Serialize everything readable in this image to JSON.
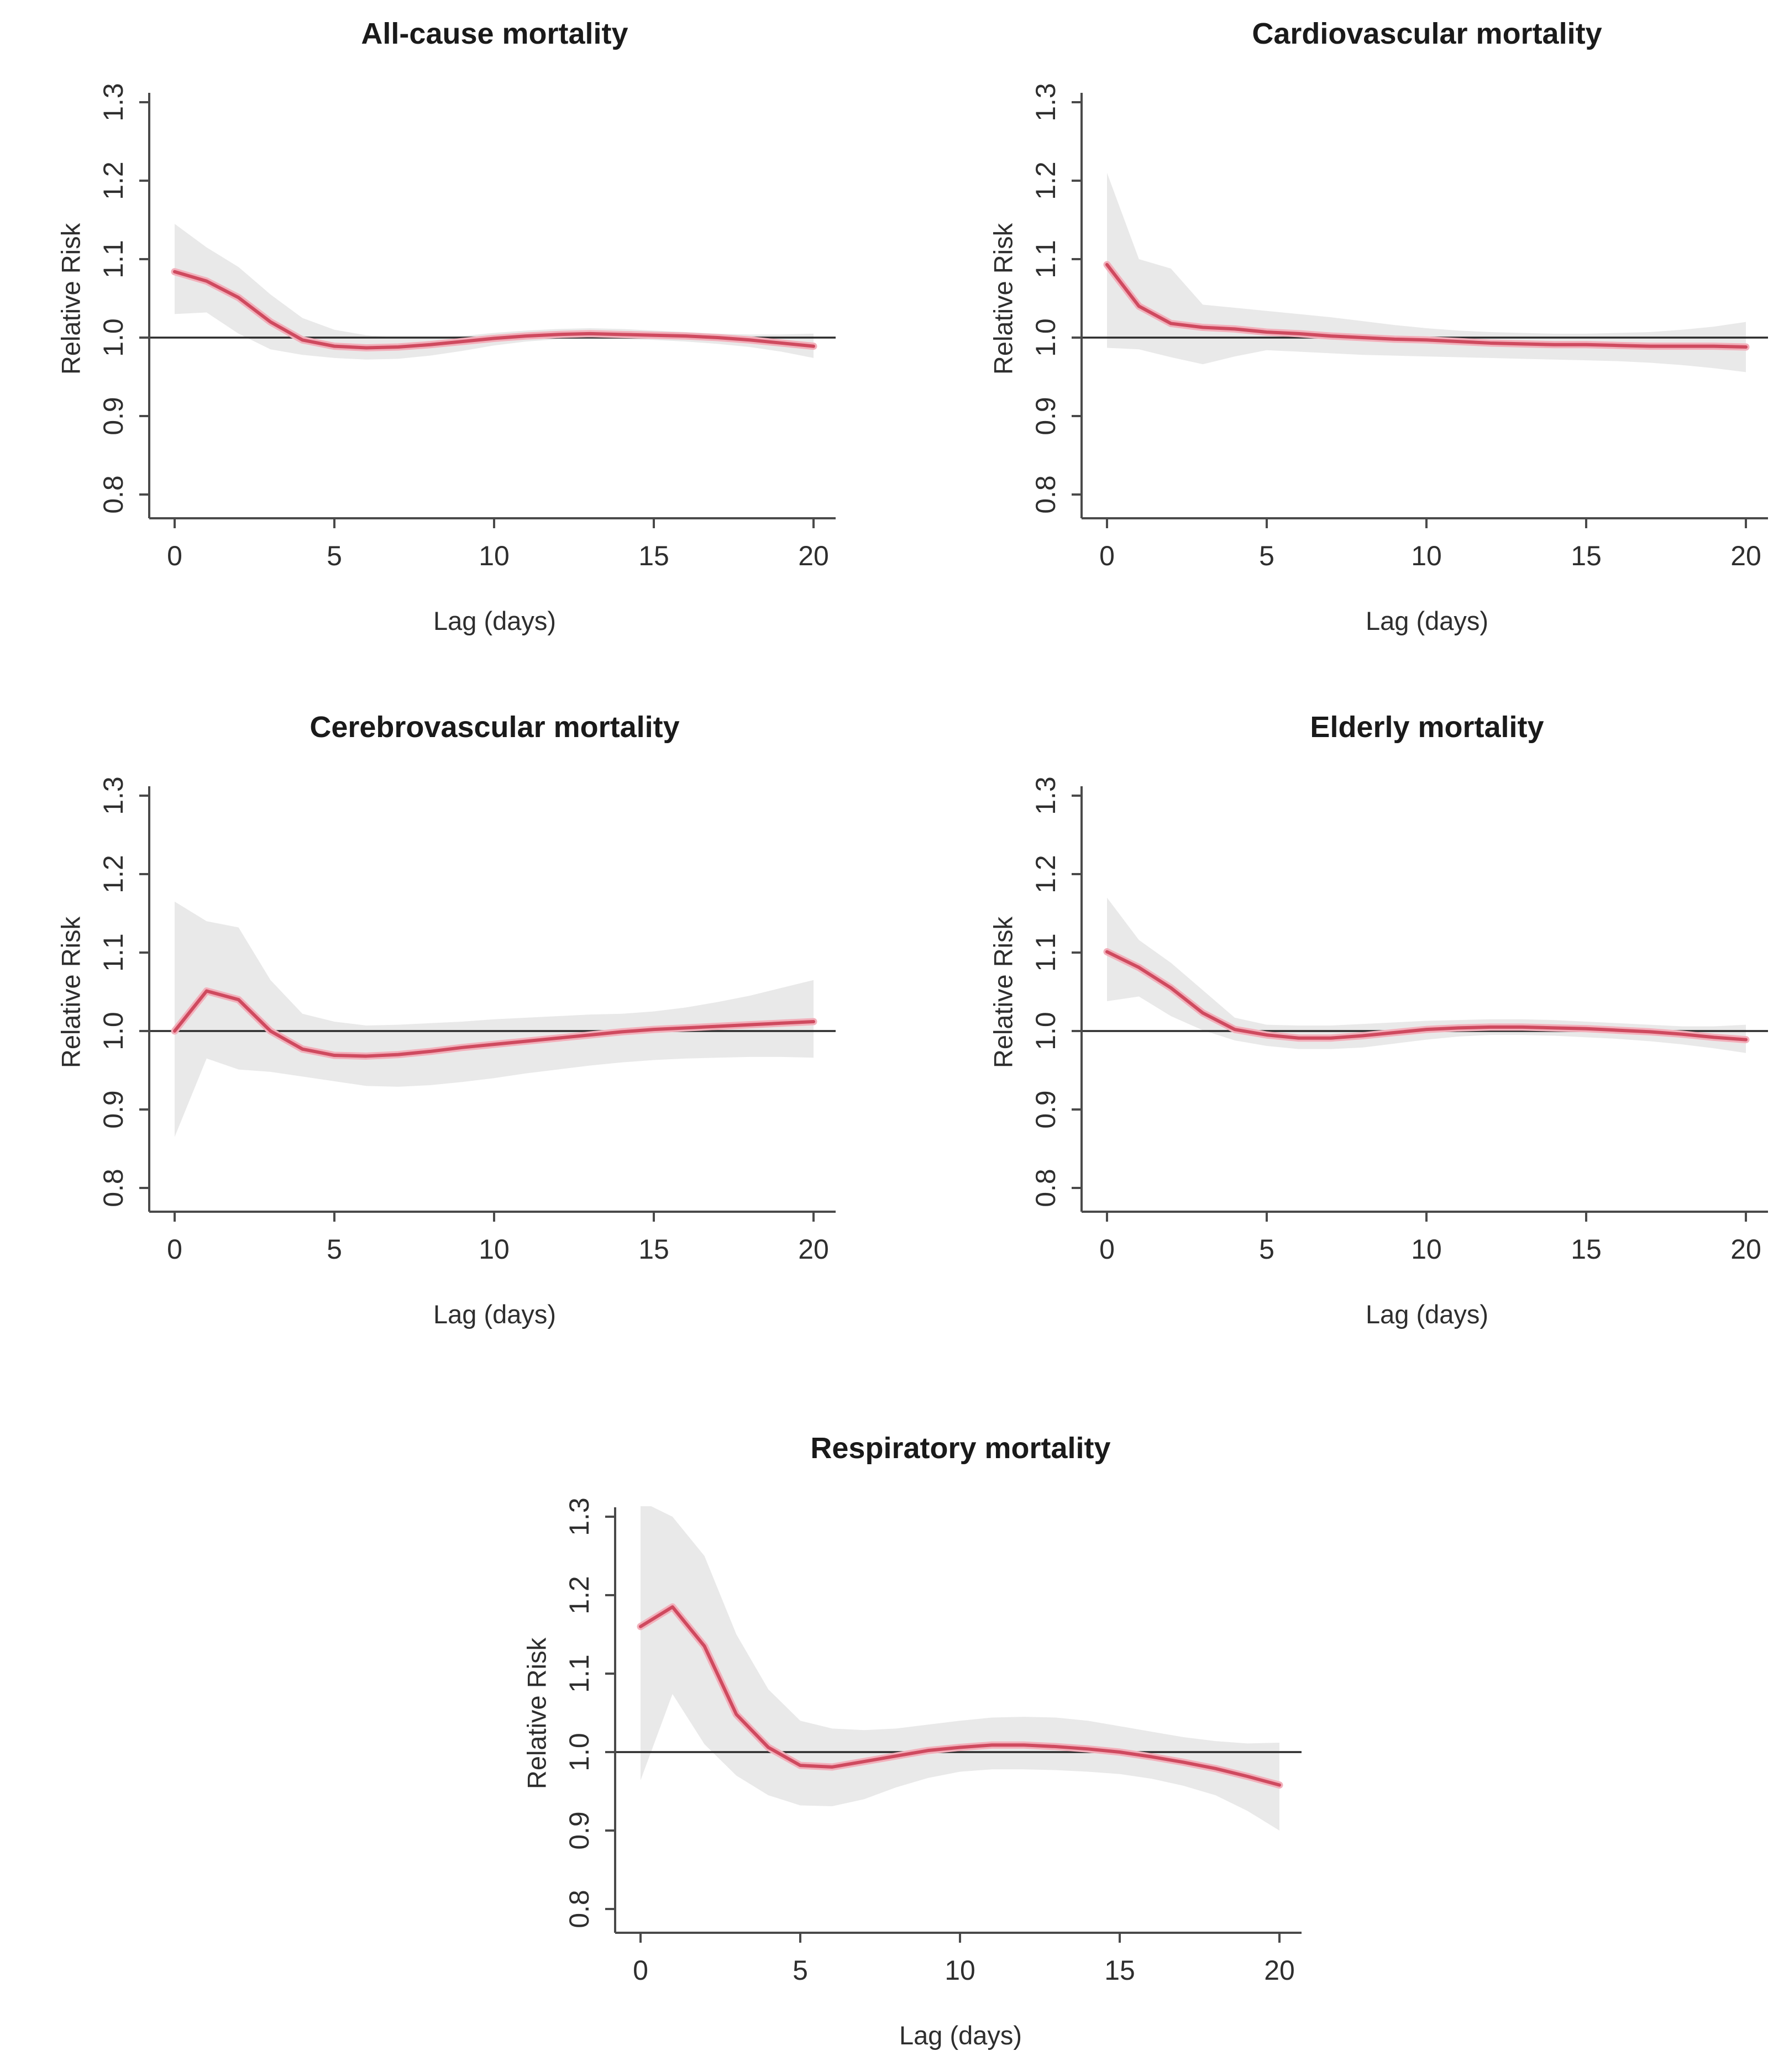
{
  "style": {
    "line_color": "#cf4a5f",
    "line_halo_color": "#f2b0bb",
    "band_color": "#e9e9e9",
    "reference_line_color": "#2b2b2b",
    "axis_color": "#4a4a4a",
    "text_color": "#2e2e2e",
    "background": "#ffffff"
  },
  "chart_data": [
    {
      "type": "line",
      "title": "All-cause mortality",
      "xlabel": "Lag (days)",
      "ylabel": "Relative Risk",
      "x": [
        0,
        1,
        2,
        3,
        4,
        5,
        6,
        7,
        8,
        9,
        10,
        11,
        12,
        13,
        14,
        15,
        16,
        17,
        18,
        19,
        20
      ],
      "xticks": [
        "0",
        "5",
        "10",
        "15",
        "20"
      ],
      "xtick_values": [
        0,
        5,
        10,
        15,
        20
      ],
      "yticks": [
        "0.8",
        "0.9",
        "1.0",
        "1.1",
        "1.2",
        "1.3"
      ],
      "ytick_values": [
        0.8,
        0.9,
        1.0,
        1.1,
        1.2,
        1.3
      ],
      "ylim": [
        0.785,
        1.325
      ],
      "reference_line": 1.0,
      "grid": false,
      "legend": "none",
      "series": [
        {
          "name": "Relative Risk",
          "values": [
            1.084,
            1.072,
            1.051,
            1.02,
            0.997,
            0.989,
            0.987,
            0.988,
            0.991,
            0.995,
            0.999,
            1.002,
            1.004,
            1.005,
            1.004,
            1.003,
            1.002,
            1.0,
            0.997,
            0.993,
            0.989
          ]
        },
        {
          "name": "CI upper",
          "values": [
            1.145,
            1.115,
            1.09,
            1.055,
            1.025,
            1.01,
            1.003,
            1.0,
            1.0,
            1.002,
            1.006,
            1.009,
            1.011,
            1.012,
            1.011,
            1.009,
            1.007,
            1.005,
            1.004,
            1.004,
            1.005
          ]
        },
        {
          "name": "CI lower",
          "values": [
            1.03,
            1.032,
            1.005,
            0.985,
            0.978,
            0.974,
            0.972,
            0.973,
            0.977,
            0.983,
            0.99,
            0.995,
            0.998,
            0.999,
            0.998,
            0.997,
            0.995,
            0.992,
            0.988,
            0.982,
            0.974
          ]
        }
      ]
    },
    {
      "type": "line",
      "title": "Cardiovascular mortality",
      "xlabel": "Lag (days)",
      "ylabel": "Relative Risk",
      "x": [
        0,
        1,
        2,
        3,
        4,
        5,
        6,
        7,
        8,
        9,
        10,
        11,
        12,
        13,
        14,
        15,
        16,
        17,
        18,
        19,
        20
      ],
      "xticks": [
        "0",
        "5",
        "10",
        "15",
        "20"
      ],
      "xtick_values": [
        0,
        5,
        10,
        15,
        20
      ],
      "yticks": [
        "0.8",
        "0.9",
        "1.0",
        "1.1",
        "1.2",
        "1.3"
      ],
      "ytick_values": [
        0.8,
        0.9,
        1.0,
        1.1,
        1.2,
        1.3
      ],
      "ylim": [
        0.785,
        1.325
      ],
      "reference_line": 1.0,
      "grid": false,
      "legend": "none",
      "series": [
        {
          "name": "Relative Risk",
          "values": [
            1.093,
            1.04,
            1.018,
            1.013,
            1.011,
            1.007,
            1.005,
            1.002,
            1.0,
            0.998,
            0.997,
            0.995,
            0.993,
            0.992,
            0.991,
            0.991,
            0.99,
            0.989,
            0.989,
            0.989,
            0.988
          ]
        },
        {
          "name": "CI upper",
          "values": [
            1.21,
            1.1,
            1.088,
            1.042,
            1.038,
            1.034,
            1.03,
            1.026,
            1.021,
            1.016,
            1.012,
            1.009,
            1.007,
            1.006,
            1.005,
            1.005,
            1.006,
            1.007,
            1.01,
            1.014,
            1.02
          ]
        },
        {
          "name": "CI lower",
          "values": [
            0.987,
            0.985,
            0.975,
            0.966,
            0.976,
            0.984,
            0.982,
            0.98,
            0.978,
            0.977,
            0.976,
            0.975,
            0.974,
            0.973,
            0.972,
            0.971,
            0.97,
            0.968,
            0.965,
            0.961,
            0.956
          ]
        }
      ]
    },
    {
      "type": "line",
      "title": "Cerebrovascular mortality",
      "xlabel": "Lag (days)",
      "ylabel": "Relative Risk",
      "x": [
        0,
        1,
        2,
        3,
        4,
        5,
        6,
        7,
        8,
        9,
        10,
        11,
        12,
        13,
        14,
        15,
        16,
        17,
        18,
        19,
        20
      ],
      "xticks": [
        "0",
        "5",
        "10",
        "15",
        "20"
      ],
      "xtick_values": [
        0,
        5,
        10,
        15,
        20
      ],
      "yticks": [
        "0.8",
        "0.9",
        "1.0",
        "1.1",
        "1.2",
        "1.3"
      ],
      "ytick_values": [
        0.8,
        0.9,
        1.0,
        1.1,
        1.2,
        1.3
      ],
      "ylim": [
        0.785,
        1.325
      ],
      "reference_line": 1.0,
      "grid": false,
      "legend": "none",
      "series": [
        {
          "name": "Relative Risk",
          "values": [
            1.0,
            1.051,
            1.04,
            1.0,
            0.977,
            0.969,
            0.968,
            0.97,
            0.974,
            0.979,
            0.983,
            0.987,
            0.991,
            0.995,
            0.999,
            1.002,
            1.004,
            1.006,
            1.008,
            1.01,
            1.012
          ]
        },
        {
          "name": "CI upper",
          "values": [
            1.165,
            1.14,
            1.132,
            1.065,
            1.022,
            1.012,
            1.007,
            1.008,
            1.01,
            1.012,
            1.015,
            1.017,
            1.019,
            1.021,
            1.022,
            1.025,
            1.03,
            1.037,
            1.045,
            1.055,
            1.065
          ]
        },
        {
          "name": "CI lower",
          "values": [
            0.865,
            0.965,
            0.951,
            0.948,
            0.942,
            0.936,
            0.93,
            0.929,
            0.931,
            0.935,
            0.94,
            0.946,
            0.951,
            0.956,
            0.96,
            0.963,
            0.965,
            0.966,
            0.967,
            0.967,
            0.966
          ]
        }
      ]
    },
    {
      "type": "line",
      "title": "Elderly mortality",
      "xlabel": "Lag (days)",
      "ylabel": "Relative Risk",
      "x": [
        0,
        1,
        2,
        3,
        4,
        5,
        6,
        7,
        8,
        9,
        10,
        11,
        12,
        13,
        14,
        15,
        16,
        17,
        18,
        19,
        20
      ],
      "xticks": [
        "0",
        "5",
        "10",
        "15",
        "20"
      ],
      "xtick_values": [
        0,
        5,
        10,
        15,
        20
      ],
      "yticks": [
        "0.8",
        "0.9",
        "1.0",
        "1.1",
        "1.2",
        "1.3"
      ],
      "ytick_values": [
        0.8,
        0.9,
        1.0,
        1.1,
        1.2,
        1.3
      ],
      "ylim": [
        0.785,
        1.325
      ],
      "reference_line": 1.0,
      "grid": false,
      "legend": "none",
      "series": [
        {
          "name": "Relative Risk",
          "values": [
            1.101,
            1.081,
            1.055,
            1.023,
            1.002,
            0.995,
            0.991,
            0.991,
            0.994,
            0.998,
            1.002,
            1.004,
            1.005,
            1.005,
            1.004,
            1.003,
            1.001,
            0.999,
            0.996,
            0.992,
            0.989
          ]
        },
        {
          "name": "CI upper",
          "values": [
            1.17,
            1.116,
            1.087,
            1.052,
            1.017,
            1.008,
            1.007,
            1.007,
            1.009,
            1.011,
            1.013,
            1.014,
            1.015,
            1.015,
            1.014,
            1.012,
            1.01,
            1.008,
            1.006,
            1.006,
            1.008
          ]
        },
        {
          "name": "CI lower",
          "values": [
            1.038,
            1.044,
            1.019,
            1.001,
            0.988,
            0.981,
            0.977,
            0.977,
            0.979,
            0.984,
            0.989,
            0.993,
            0.995,
            0.995,
            0.994,
            0.992,
            0.99,
            0.987,
            0.983,
            0.978,
            0.972
          ]
        }
      ]
    },
    {
      "type": "line",
      "title": "Respiratory mortality",
      "xlabel": "Lag (days)",
      "ylabel": "Relative Risk",
      "x": [
        0,
        1,
        2,
        3,
        4,
        5,
        6,
        7,
        8,
        9,
        10,
        11,
        12,
        13,
        14,
        15,
        16,
        17,
        18,
        19,
        20
      ],
      "xticks": [
        "0",
        "5",
        "10",
        "15",
        "20"
      ],
      "xtick_values": [
        0,
        5,
        10,
        15,
        20
      ],
      "yticks": [
        "0.8",
        "0.9",
        "1.0",
        "1.1",
        "1.2",
        "1.3"
      ],
      "ytick_values": [
        0.8,
        0.9,
        1.0,
        1.1,
        1.2,
        1.3
      ],
      "ylim": [
        0.785,
        1.325
      ],
      "reference_line": 1.0,
      "grid": false,
      "legend": "none",
      "series": [
        {
          "name": "Relative Risk",
          "values": [
            1.16,
            1.185,
            1.135,
            1.048,
            1.006,
            0.983,
            0.981,
            0.988,
            0.995,
            1.002,
            1.006,
            1.009,
            1.009,
            1.007,
            1.004,
            1.0,
            0.994,
            0.987,
            0.979,
            0.969,
            0.958
          ]
        },
        {
          "name": "CI upper",
          "values": [
            1.32,
            1.3,
            1.25,
            1.15,
            1.08,
            1.04,
            1.03,
            1.028,
            1.03,
            1.035,
            1.04,
            1.044,
            1.045,
            1.044,
            1.04,
            1.033,
            1.026,
            1.019,
            1.014,
            1.011,
            1.012
          ]
        },
        {
          "name": "CI lower",
          "values": [
            0.964,
            1.074,
            1.01,
            0.97,
            0.945,
            0.932,
            0.931,
            0.94,
            0.955,
            0.967,
            0.975,
            0.978,
            0.978,
            0.977,
            0.975,
            0.972,
            0.966,
            0.957,
            0.945,
            0.925,
            0.9
          ]
        }
      ]
    }
  ]
}
